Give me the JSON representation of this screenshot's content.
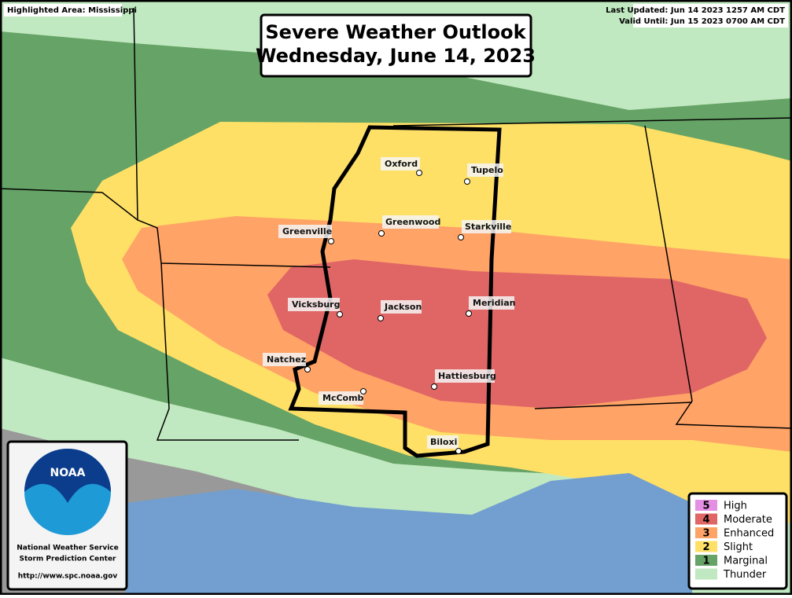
{
  "header": {
    "highlighted": "Highlighted Area: Mississippi",
    "updated": "Last Updated: Jun 14 2023 1257 AM CDT",
    "valid": "Valid Until: Jun 15 2023 0700 AM CDT"
  },
  "title": {
    "line1": "Severe Weather Outlook",
    "line2": "Wednesday, June 14, 2023"
  },
  "cities": [
    "Oxford",
    "Tupelo",
    "Greenwood",
    "Greenville",
    "Starkville",
    "Vicksburg",
    "Jackson",
    "Meridian",
    "Natchez",
    "Hattiesburg",
    "McComb",
    "Biloxi"
  ],
  "logo": {
    "mark": "NOAA",
    "org1": "National Weather Service",
    "org2": "Storm Prediction Center",
    "url": "http://www.spc.noaa.gov"
  },
  "legend": [
    {
      "level": "5",
      "label": "High",
      "color": "#e48fe4"
    },
    {
      "level": "4",
      "label": "Moderate",
      "color": "#e06666"
    },
    {
      "level": "3",
      "label": "Enhanced",
      "color": "#ffa366"
    },
    {
      "level": "2",
      "label": "Slight",
      "color": "#ffe066"
    },
    {
      "level": "1",
      "label": "Marginal",
      "color": "#66a366"
    },
    {
      "level": "",
      "label": "Thunder",
      "color": "#c1e9c1"
    }
  ]
}
